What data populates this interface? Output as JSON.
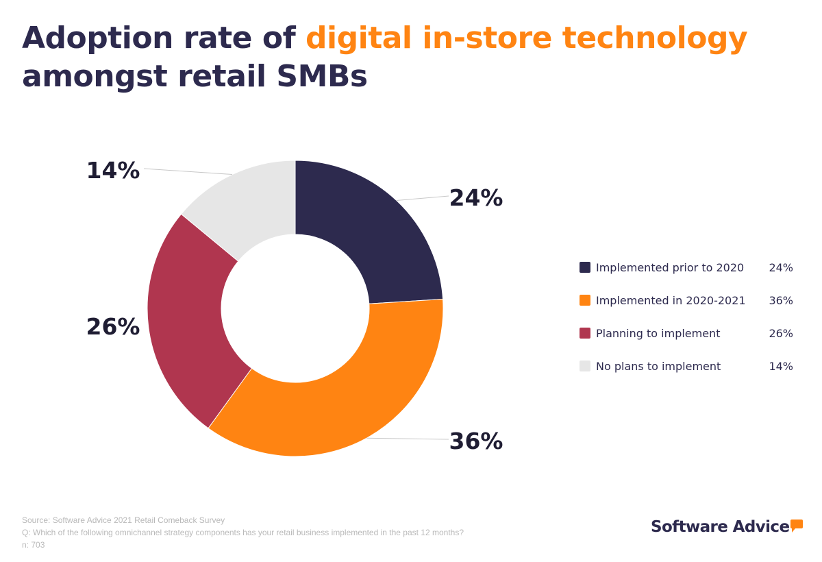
{
  "title": {
    "part1": "Adoption rate of ",
    "highlight": "digital in-store technology",
    "part2": "amongst retail SMBs"
  },
  "chart_data": {
    "type": "pie",
    "variant": "donut",
    "title": "Adoption rate of digital in-store technology amongst retail SMBs",
    "categories": [
      "Implemented prior to 2020",
      "Implemented in 2020-2021",
      "Planning to implement",
      "No plans to implement"
    ],
    "values": [
      24,
      36,
      26,
      14
    ],
    "labels": [
      "24%",
      "36%",
      "26%",
      "14%"
    ],
    "colors": [
      "#2d2a4e",
      "#ff8412",
      "#b0364f",
      "#e6e6e6"
    ],
    "legend_position": "right"
  },
  "footer": {
    "source": "Source: Software Advice 2021 Retail Comeback Survey",
    "question": "Q: Which of the following omnichannel strategy components has your retail business implemented in the past 12 months?",
    "n": "n: 703"
  },
  "logo": "Software Advice"
}
